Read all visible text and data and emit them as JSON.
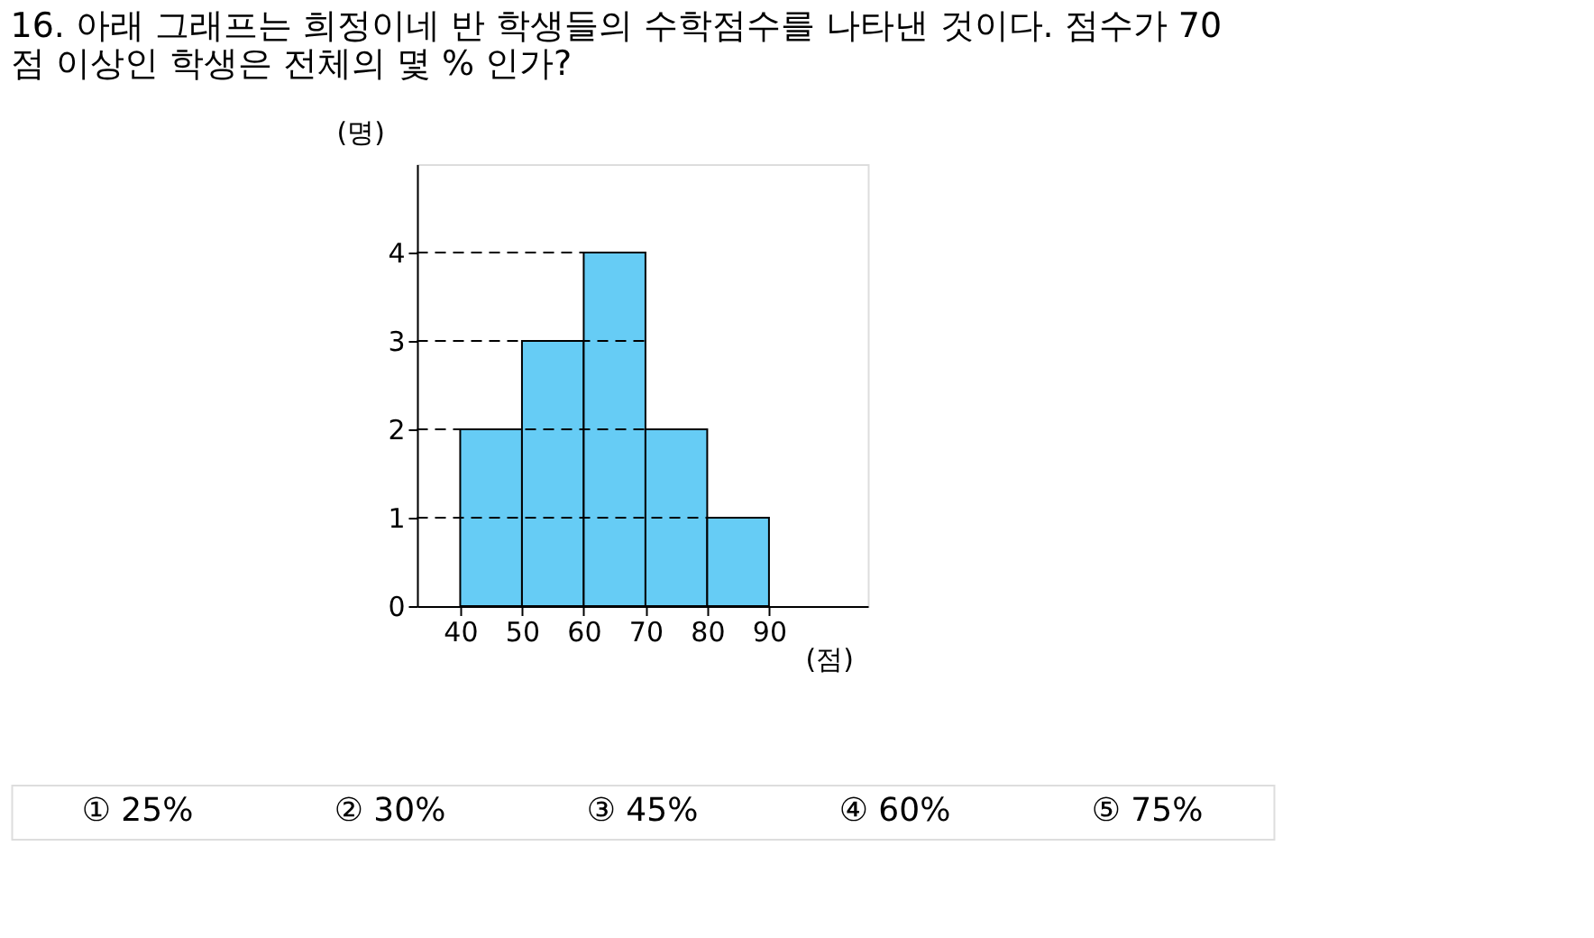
{
  "chart_data": {
    "type": "histogram",
    "title": "16. 아래 그래프는 희정이네 반 학생들의 수학점수를 나타낸 것이다. 점수가 70 점 이상인 학생은 전체의 몇 % 인가?",
    "bins": [
      40,
      50,
      60,
      70,
      80,
      90
    ],
    "values": [
      2,
      3,
      4,
      2,
      1
    ],
    "color": "#66ccf5",
    "xlabel": "(점)",
    "ylabel": "(명)",
    "xlim": [
      33,
      106
    ],
    "xticks": [
      40,
      50,
      60,
      70,
      80,
      90
    ],
    "ylim": [
      0,
      5
    ],
    "yticks": [
      0,
      1,
      2,
      3,
      4
    ],
    "grid": false,
    "ref_lines": [
      {
        "axis": "y",
        "value": 1,
        "line_style": "dashed",
        "color": "#000000"
      },
      {
        "axis": "y",
        "value": 2,
        "line_style": "dashed",
        "color": "#000000"
      },
      {
        "axis": "y",
        "value": 3,
        "line_style": "dashed",
        "color": "#000000"
      },
      {
        "axis": "y",
        "value": 4,
        "line_style": "dashed",
        "color": "#000000"
      }
    ],
    "annotations": [
      "① 25%",
      "② 30%",
      "③ 45%",
      "④ 60%",
      "⑤ 75%"
    ]
  }
}
